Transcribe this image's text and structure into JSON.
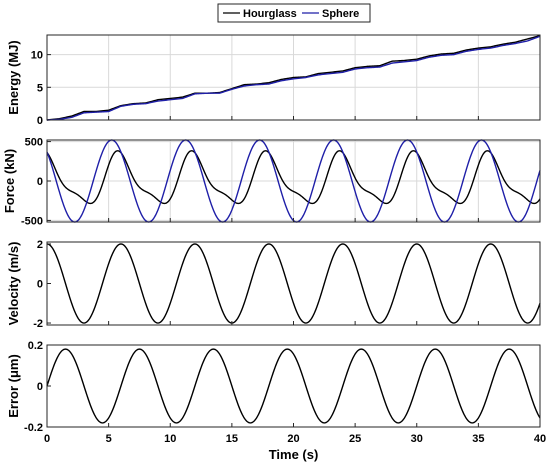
{
  "legend": {
    "entries": [
      {
        "label": "Hourglass",
        "color": "#000000"
      },
      {
        "label": "Sphere",
        "color": "#1f1fa8"
      }
    ],
    "placement": "top-center"
  },
  "chart_data": [
    {
      "type": "line",
      "ylabel": "Energy (MJ)",
      "xlabel": "",
      "xlim": [
        0,
        40
      ],
      "ylim": [
        0,
        13
      ],
      "yticks": [
        "0",
        "5",
        "10"
      ],
      "grid": true,
      "series": [
        {
          "name": "Hourglass",
          "color": "#000000",
          "x": [
            0,
            1,
            2,
            3,
            4,
            5,
            6,
            7,
            8,
            9,
            10,
            11,
            12,
            13,
            14,
            15,
            16,
            17,
            18,
            19,
            20,
            21,
            22,
            23,
            24,
            25,
            26,
            27,
            28,
            29,
            30,
            31,
            32,
            33,
            34,
            35,
            36,
            37,
            38,
            39,
            40
          ],
          "y": [
            0,
            0.2,
            0.6,
            1.3,
            1.3,
            1.5,
            2.2,
            2.5,
            2.6,
            3.1,
            3.3,
            3.5,
            4.1,
            4.1,
            4.2,
            4.8,
            5.4,
            5.5,
            5.7,
            6.2,
            6.5,
            6.6,
            7.1,
            7.3,
            7.5,
            8.0,
            8.2,
            8.3,
            9.0,
            9.1,
            9.3,
            9.8,
            10.1,
            10.2,
            10.7,
            11.0,
            11.2,
            11.6,
            11.9,
            12.4,
            12.9
          ]
        },
        {
          "name": "Sphere",
          "color": "#1f1fa8",
          "x": [
            0,
            1,
            2,
            3,
            4,
            5,
            6,
            7,
            8,
            9,
            10,
            11,
            12,
            13,
            14,
            15,
            16,
            17,
            18,
            19,
            20,
            21,
            22,
            23,
            24,
            25,
            26,
            27,
            28,
            29,
            30,
            31,
            32,
            33,
            34,
            35,
            36,
            37,
            38,
            39,
            40
          ],
          "y": [
            0,
            0.1,
            0.4,
            1.1,
            1.2,
            1.3,
            2.1,
            2.4,
            2.5,
            2.9,
            3.1,
            3.3,
            4.0,
            4.1,
            4.1,
            4.7,
            5.2,
            5.4,
            5.5,
            6.0,
            6.3,
            6.5,
            6.9,
            7.1,
            7.3,
            7.8,
            8.0,
            8.1,
            8.7,
            8.9,
            9.1,
            9.6,
            9.9,
            10.0,
            10.5,
            10.8,
            11.0,
            11.4,
            11.7,
            12.1,
            12.8
          ]
        }
      ]
    },
    {
      "type": "line",
      "ylabel": "Force (kN)",
      "xlabel": "",
      "xlim": [
        0,
        40
      ],
      "ylim": [
        -520,
        520
      ],
      "yticks": [
        "-500",
        "0",
        "500"
      ],
      "grid": true,
      "series": [
        {
          "name": "Hourglass",
          "color": "#000000",
          "period_s": 6,
          "amplitude": 380,
          "peak_at_s": 6.0,
          "x": [
            0,
            0.5,
            1,
            1.5,
            2,
            2.5,
            3,
            3.5,
            4,
            4.5,
            5,
            5.5,
            6,
            6.5,
            7,
            7.5,
            8,
            8.5,
            9
          ],
          "y": [
            220,
            150,
            110,
            60,
            -40,
            -220,
            -360,
            -380,
            -260,
            -40,
            140,
            300,
            380,
            340,
            160,
            100,
            40,
            -80,
            -260
          ]
        },
        {
          "name": "Sphere",
          "color": "#1f1fa8",
          "period_s": 6,
          "amplitude": 520,
          "peak_at_s": 5.25,
          "x": [
            0,
            1,
            2,
            3,
            4,
            5,
            6,
            7,
            8,
            9
          ],
          "y": [
            280,
            -120,
            -440,
            -520,
            -280,
            500,
            430,
            -100,
            -450,
            -510
          ]
        }
      ]
    },
    {
      "type": "line",
      "ylabel": "Velocity (m/s)",
      "xlabel": "",
      "xlim": [
        0,
        40
      ],
      "ylim": [
        -2.1,
        2.1
      ],
      "yticks": [
        "-2",
        "0",
        "2"
      ],
      "grid": false,
      "series": [
        {
          "name": "Hourglass",
          "color": "#000000",
          "period_s": 6,
          "amplitude": 2,
          "x": [
            0,
            1.5,
            3,
            4.5,
            6,
            7.5,
            9
          ],
          "y": [
            2,
            0,
            -2,
            0,
            2,
            0,
            -2
          ]
        }
      ]
    },
    {
      "type": "line",
      "ylabel": "Error (μm)",
      "xlabel": "Time (s)",
      "xlim": [
        0,
        40
      ],
      "ylim": [
        -0.2,
        0.2
      ],
      "yticks": [
        "-0.2",
        "0",
        "0.2"
      ],
      "xticks": [
        "0",
        "5",
        "10",
        "15",
        "20",
        "25",
        "30",
        "35",
        "40"
      ],
      "grid": false,
      "series": [
        {
          "name": "Hourglass",
          "color": "#000000",
          "period_s": 6,
          "amplitude": 0.18,
          "x": [
            0,
            1.5,
            3,
            4.5,
            6,
            7.5,
            9
          ],
          "y": [
            0,
            0.18,
            0,
            -0.18,
            0,
            0.18,
            0
          ]
        }
      ]
    }
  ]
}
